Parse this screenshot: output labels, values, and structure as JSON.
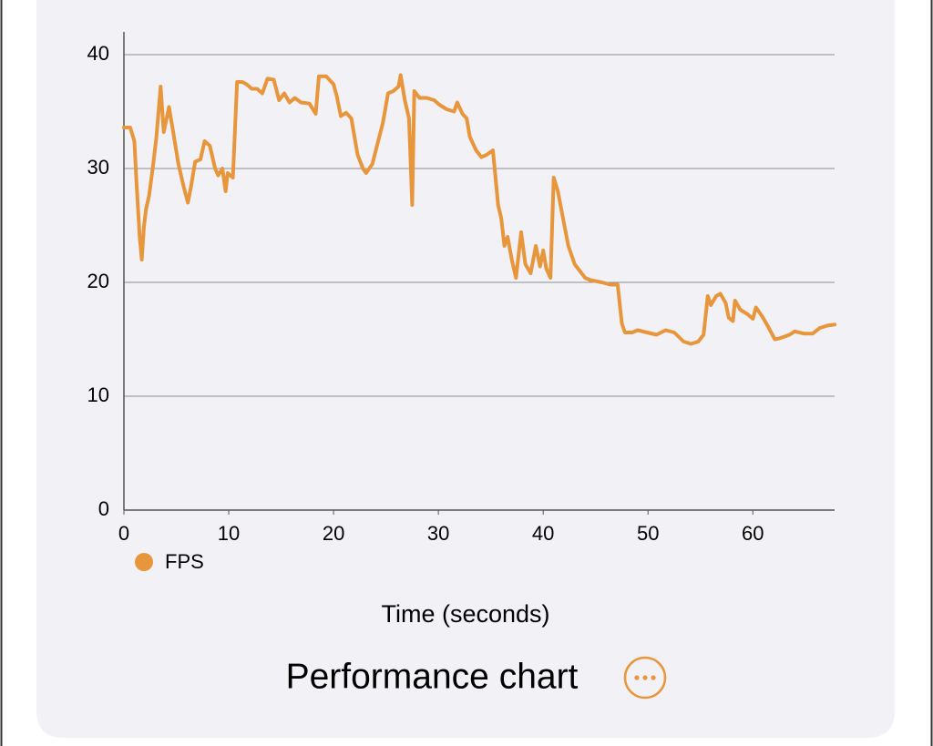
{
  "chart_data": {
    "type": "line",
    "title": "Performance chart",
    "x_label": "Time (seconds)",
    "x": [
      0,
      0.6,
      1.0,
      1.2,
      1.5,
      1.7,
      1.9,
      2.1,
      2.4,
      2.8,
      3.1,
      3.5,
      3.8,
      4.3,
      4.7,
      5.2,
      5.7,
      6.1,
      6.4,
      6.8,
      7.3,
      7.7,
      8.2,
      8.7,
      9.0,
      9.4,
      9.7,
      9.9,
      10.4,
      10.8,
      11.3,
      11.7,
      12.2,
      12.7,
      13.2,
      13.7,
      14.3,
      14.8,
      15.3,
      15.8,
      16.3,
      16.9,
      17.7,
      18.3,
      18.6,
      19.3,
      20,
      20.3,
      20.7,
      21.2,
      21.7,
      22.3,
      22.8,
      23.1,
      23.7,
      24.2,
      24.7,
      25.2,
      25.7,
      26.2,
      26.4,
      26.8,
      27.2,
      27.5,
      27.7,
      28.2,
      28.9,
      29.6,
      30.1,
      30.8,
      31.5,
      31.8,
      32.3,
      32.7,
      33,
      33.6,
      34.1,
      34.6,
      35.2,
      35.7,
      36,
      36.3,
      36.6,
      37,
      37.4,
      37.9,
      38.3,
      38.8,
      39.3,
      39.7,
      40,
      40.3,
      40.7,
      41,
      41.4,
      41.9,
      42.4,
      43,
      43.5,
      44,
      44.5,
      45.6,
      46.4,
      47.1,
      47.5,
      47.8,
      48.5,
      49,
      49.9,
      50.8,
      51.7,
      52.5,
      53.4,
      54.1,
      54.8,
      55.3,
      55.7,
      56,
      56.5,
      56.9,
      57.4,
      57.7,
      58.1,
      58.3,
      58.8,
      59.5,
      60,
      60.3,
      60.9,
      61.4,
      62.1,
      62.6,
      63.5,
      64,
      64.9,
      65.7,
      66.4,
      67.1,
      67.8
    ],
    "series": [
      {
        "name": "FPS",
        "color": "#e8963c",
        "values": [
          33.6,
          33.6,
          32.4,
          28.8,
          24,
          22,
          24.8,
          26.4,
          27.6,
          30.4,
          32.8,
          37.2,
          33.2,
          35.4,
          33.2,
          30.4,
          28.4,
          27,
          28.4,
          30.6,
          30.8,
          32.4,
          32,
          30,
          29.4,
          30,
          28,
          29.6,
          29.2,
          37.6,
          37.6,
          37.4,
          37,
          37,
          36.6,
          37.9,
          37.8,
          36,
          36.6,
          35.8,
          36.2,
          35.8,
          35.7,
          34.8,
          38.1,
          38.1,
          37.4,
          36.4,
          34.6,
          34.9,
          34.4,
          31.2,
          30,
          29.6,
          30.4,
          32.2,
          34,
          36.6,
          36.8,
          37.2,
          38.2,
          36,
          34.4,
          26.8,
          36.8,
          36.2,
          36.2,
          36,
          35.6,
          35.2,
          35,
          35.8,
          34.8,
          34.4,
          32.8,
          31.6,
          31,
          31.2,
          31.6,
          26.8,
          25.6,
          23.2,
          24,
          22,
          20.4,
          24.4,
          21.6,
          20.8,
          23.2,
          21.4,
          22.8,
          21.2,
          20.4,
          29.2,
          28,
          25.6,
          23.2,
          21.6,
          21,
          20.4,
          20.2,
          20,
          19.8,
          19.8,
          16.4,
          15.6,
          15.6,
          15.8,
          15.6,
          15.4,
          15.8,
          15.6,
          14.8,
          14.6,
          14.8,
          15.4,
          18.8,
          18,
          18.8,
          19,
          18.2,
          16.9,
          16.6,
          18.4,
          17.6,
          17.2,
          16.8,
          17.8,
          17,
          16.2,
          15,
          15.1,
          15.4,
          15.7,
          15.5,
          15.5,
          16,
          16.2,
          16.3
        ]
      }
    ],
    "xlim": [
      0,
      67.8
    ],
    "xticks": [
      0,
      10,
      20,
      30,
      40,
      50,
      60
    ],
    "ylim": [
      0,
      42
    ],
    "yticks": [
      0,
      10,
      20,
      30,
      40
    ],
    "grid": true
  }
}
